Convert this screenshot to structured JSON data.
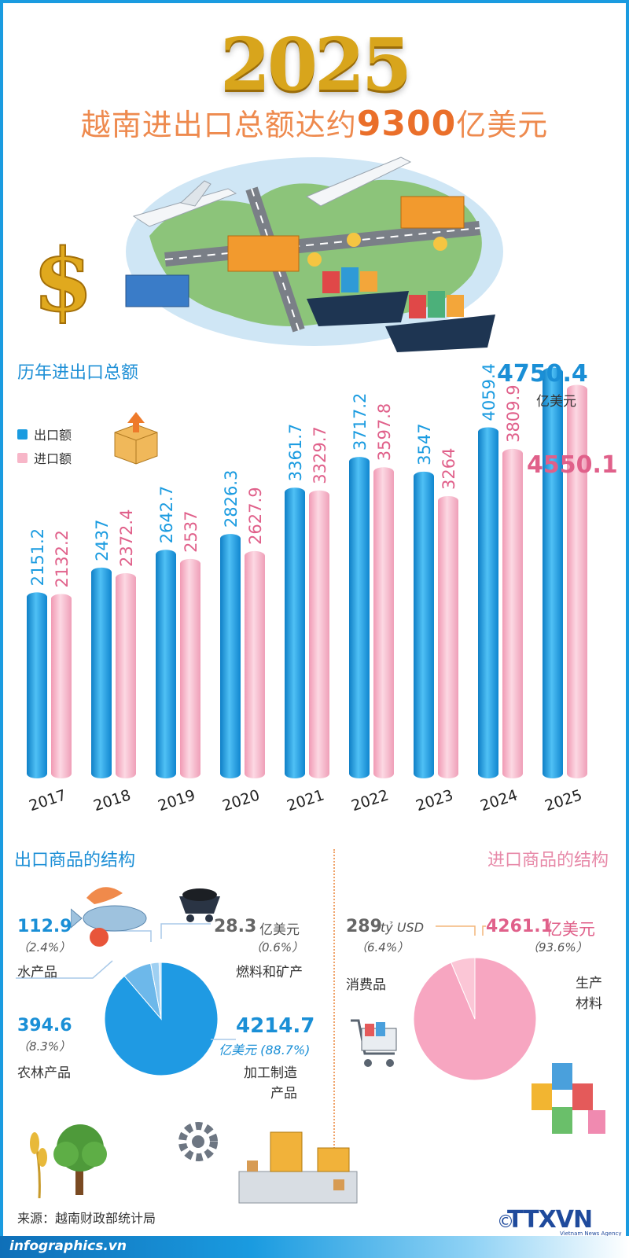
{
  "header": {
    "year": "2025",
    "headline_pre": "越南进出口总额达约",
    "headline_num": "9300",
    "headline_post": "亿美元"
  },
  "section_trade": {
    "title": "历年进出口总额"
  },
  "colors": {
    "export": "#1a9be0",
    "import": "#f7b6c8",
    "import_text": "#e0608a",
    "accent": "#ee8a4e"
  },
  "chart_data": {
    "type": "bar",
    "categories": [
      "2017",
      "2018",
      "2019",
      "2020",
      "2021",
      "2022",
      "2023",
      "2024",
      "2025"
    ],
    "series": [
      {
        "name": "出口额",
        "values": [
          2151.2,
          2437,
          2642.7,
          2826.3,
          3361.7,
          3717.2,
          3547,
          4059.4,
          4750.4
        ],
        "labels": [
          "2151.2",
          "2437",
          "2642.7",
          "2826.3",
          "3361.7",
          "3717.2",
          "3547",
          "4059.4",
          "4750.4"
        ]
      },
      {
        "name": "进口额",
        "values": [
          2132.2,
          2372.4,
          2537,
          2627.9,
          3329.7,
          3597.8,
          3264,
          3809.9,
          4550.1
        ],
        "labels": [
          "2132.2",
          "2372.4",
          "2537",
          "2627.9",
          "3329.7",
          "3597.8",
          "3264",
          "3809.9",
          "4550.1"
        ]
      }
    ],
    "unit": "亿美元",
    "legend": "top-left"
  },
  "export_structure": {
    "title": "出口商品的结构",
    "chart_data": {
      "type": "pie",
      "slices": [
        {
          "name": "加工制造产品",
          "value": 4214.7,
          "pct": 88.7
        },
        {
          "name": "农林产品",
          "value": 394.6,
          "pct": 8.3
        },
        {
          "name": "水产品",
          "value": 112.9,
          "pct": 2.4
        },
        {
          "name": "燃料和矿产",
          "value": 28.3,
          "pct": 0.6
        }
      ]
    },
    "seafood": {
      "value": "112.9",
      "pct": "（2.4%）",
      "label": "水产品"
    },
    "fuel": {
      "value": "28.3",
      "unit": "亿美元",
      "pct": "（0.6%）",
      "label": "燃料和矿产"
    },
    "agri": {
      "value": "394.6",
      "pct": "（8.3%）",
      "label": "农林产品"
    },
    "mfg": {
      "value": "4214.7",
      "unit_pct": "亿美元 (88.7%)",
      "label_1": "加工制造",
      "label_2": "产品"
    }
  },
  "import_structure": {
    "title": "进口商品的结构",
    "chart_data": {
      "type": "pie",
      "slices": [
        {
          "name": "生产材料",
          "value": 4261.1,
          "pct": 93.6
        },
        {
          "name": "消费品",
          "value": 289,
          "pct": 6.4
        }
      ]
    },
    "consumer": {
      "value": "289",
      "unit": "tỷ USD",
      "pct": "（6.4%）",
      "label": "消费品"
    },
    "production": {
      "value": "4261.1",
      "unit": "亿美元",
      "pct": "（93.6%）",
      "label_1": "生产",
      "label_2": "材料"
    }
  },
  "footer": {
    "source": "来源：越南财政部统计局",
    "site": "infographics.vn",
    "copyright": "©",
    "agency": "TTXVN",
    "agency_sub": "Vietnam News Agency"
  }
}
